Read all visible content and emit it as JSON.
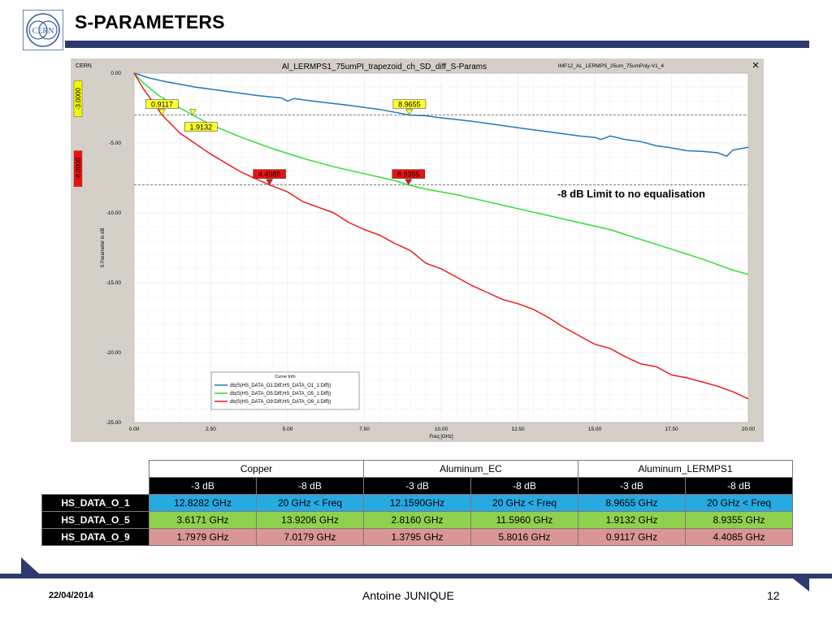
{
  "slide": {
    "title": "S-PARAMETERS",
    "logo_text": "CERN",
    "annotation": "-8 dB Limit to no equalisation",
    "date": "22/04/2014",
    "author": "Antoine JUNIQUE",
    "page_number": "12"
  },
  "chart_data": {
    "type": "line",
    "corner_label": "CERN",
    "title": "Al_LERMPS1_75umPI_trapezoid_ch_SD_diff_S-Params",
    "subtitle": "IMF12_AL_LERMPS_25um_75umPoly-V1_4",
    "xlabel": "Freq [GHz]",
    "ylabel": "S Parameter in dB",
    "xlim": [
      0,
      20
    ],
    "ylim": [
      -25,
      0
    ],
    "x_ticks": [
      "0.00",
      "2.50",
      "5.00",
      "7.50",
      "10.00",
      "12.50",
      "15.00",
      "17.50",
      "20.00"
    ],
    "y_ticks": [
      "0.00",
      "-5.00",
      "-10.00",
      "-15.00",
      "-20.00",
      "-25.00"
    ],
    "grid": true,
    "legend_title": "Curve Info",
    "legend_position": "bottom-center",
    "reference_lines": [
      {
        "value": -3,
        "label": "-3.0000",
        "color": "#f5f500"
      },
      {
        "value": -8,
        "label": "-8.0000",
        "color": "#ee1111"
      }
    ],
    "markers": [
      {
        "x": 0.9117,
        "y": -3,
        "label": "0.9117",
        "color": "#ffff33"
      },
      {
        "x": 8.9655,
        "y": -3,
        "label": "8.9655",
        "color": "#ffff33"
      },
      {
        "x": 1.9132,
        "y": -3,
        "label": "1.9132",
        "color": "#ffff33"
      },
      {
        "x": 4.4085,
        "y": -8,
        "label": "4.4085",
        "color": "#ee1111"
      },
      {
        "x": 8.9355,
        "y": -8,
        "label": "8.9355",
        "color": "#ee1111"
      }
    ],
    "series": [
      {
        "name": "db(S(HS_DATA_O1:Diff,HS_DATA_O1_1:Diff))",
        "color": "#1f77c0",
        "x": [
          0,
          0.5,
          1,
          2,
          3,
          4,
          4.8,
          5,
          5.2,
          6,
          7,
          8,
          8.5,
          8.9655,
          9.5,
          10,
          11,
          12,
          12.8,
          13.5,
          14,
          14.5,
          15,
          15.2,
          15.5,
          16,
          16.5,
          17,
          17.5,
          18,
          18.5,
          19,
          19.3,
          19.5,
          20
        ],
        "y": [
          0,
          -0.35,
          -0.6,
          -1.0,
          -1.3,
          -1.6,
          -1.78,
          -2.0,
          -1.82,
          -2.05,
          -2.3,
          -2.6,
          -2.8,
          -3.0,
          -3.05,
          -3.2,
          -3.45,
          -3.75,
          -4.0,
          -4.2,
          -4.35,
          -4.5,
          -4.6,
          -4.75,
          -4.5,
          -4.75,
          -4.9,
          -5.2,
          -5.35,
          -5.55,
          -5.6,
          -5.7,
          -5.95,
          -5.5,
          -5.3
        ]
      },
      {
        "name": "db(S(HS_DATA_O5:Diff,HS_DATA_O5_1:Diff))",
        "color": "#33dd33",
        "x": [
          0,
          0.3,
          0.8,
          1.5,
          1.9132,
          2.5,
          3.5,
          4.5,
          5.5,
          6.5,
          7.5,
          8.5,
          8.9355,
          9.5,
          10.5,
          11.5,
          12.5,
          13.5,
          14.5,
          15.5,
          16.5,
          17.5,
          18.5,
          19.5,
          20
        ],
        "y": [
          0,
          -0.7,
          -1.6,
          -2.5,
          -3.0,
          -3.7,
          -4.6,
          -5.4,
          -6.1,
          -6.7,
          -7.2,
          -7.7,
          -8.0,
          -8.3,
          -8.7,
          -9.2,
          -9.7,
          -10.2,
          -10.7,
          -11.2,
          -11.9,
          -12.6,
          -13.3,
          -14.1,
          -14.4
        ]
      },
      {
        "name": "db(S(HS_DATA_O9:Diff,HS_DATA_O9_1:Diff))",
        "color": "#ee1c1c",
        "x": [
          0,
          0.3,
          0.9117,
          1.5,
          2.5,
          3.5,
          4.4085,
          5,
          5.5,
          6,
          6.5,
          7,
          7.5,
          8,
          8.5,
          9,
          9.5,
          10,
          10.5,
          11,
          11.5,
          12,
          12.5,
          13,
          13.5,
          14,
          14.5,
          15,
          15.5,
          16,
          16.5,
          17,
          17.5,
          18,
          18.5,
          19,
          19.5,
          20
        ],
        "y": [
          0,
          -1.1,
          -3.0,
          -4.3,
          -5.8,
          -7.1,
          -8.0,
          -8.5,
          -9.2,
          -9.6,
          -10.0,
          -10.7,
          -11.2,
          -11.6,
          -12.2,
          -12.7,
          -13.6,
          -14.0,
          -14.6,
          -15.2,
          -15.7,
          -16.2,
          -16.5,
          -16.9,
          -17.5,
          -18.2,
          -18.8,
          -19.4,
          -19.7,
          -20.3,
          -20.8,
          -21.0,
          -21.6,
          -21.8,
          -22.1,
          -22.4,
          -22.8,
          -23.3
        ]
      }
    ]
  },
  "table": {
    "groups": [
      "Copper",
      "Aluminum_EC",
      "Aluminum_LERMPS1"
    ],
    "subheaders": [
      "-3 dB",
      "-8 dB",
      "-3 dB",
      "-8 dB",
      "-3 dB",
      "-8 dB"
    ],
    "rows": [
      {
        "label": "HS_DATA_O_1",
        "color": "#27a9e1",
        "cells": [
          "12.8282 GHz",
          "20 GHz < Freq",
          "12.1590GHz",
          "20 GHz < Freq",
          "8.9655 GHz",
          "20 GHz < Freq"
        ]
      },
      {
        "label": "HS_DATA_O_5",
        "color": "#8fd14f",
        "cells": [
          "3.6171 GHz",
          "13.9206 GHz",
          "2.8160 GHz",
          "11.5960 GHz",
          "1.9132 GHz",
          "8.9355 GHz"
        ]
      },
      {
        "label": "HS_DATA_O_9",
        "color": "#d99694",
        "cells": [
          "1.7979 GHz",
          "7.0179 GHz",
          "1.3795 GHz",
          "5.8016 GHz",
          "0.9117 GHz",
          "4.4085 GHz"
        ]
      }
    ]
  }
}
